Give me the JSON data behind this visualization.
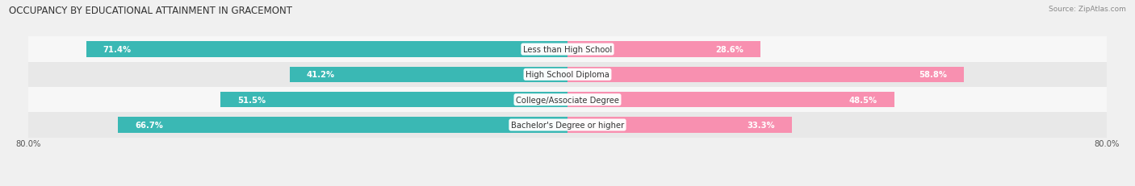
{
  "title": "OCCUPANCY BY EDUCATIONAL ATTAINMENT IN GRACEMONT",
  "source": "Source: ZipAtlas.com",
  "categories": [
    "Less than High School",
    "High School Diploma",
    "College/Associate Degree",
    "Bachelor's Degree or higher"
  ],
  "owner_pct": [
    71.4,
    41.2,
    51.5,
    66.7
  ],
  "renter_pct": [
    28.6,
    58.8,
    48.5,
    33.3
  ],
  "owner_color": "#3ab8b4",
  "renter_color": "#f890b0",
  "xlim": [
    -80,
    80
  ],
  "bar_height": 0.62,
  "bg_color": "#f0f0f0",
  "row_colors_even": "#f7f7f7",
  "row_colors_odd": "#e8e8e8",
  "title_fontsize": 8.5,
  "cat_fontsize": 7.2,
  "pct_fontsize": 7.2,
  "source_fontsize": 6.5,
  "legend_fontsize": 7.2
}
